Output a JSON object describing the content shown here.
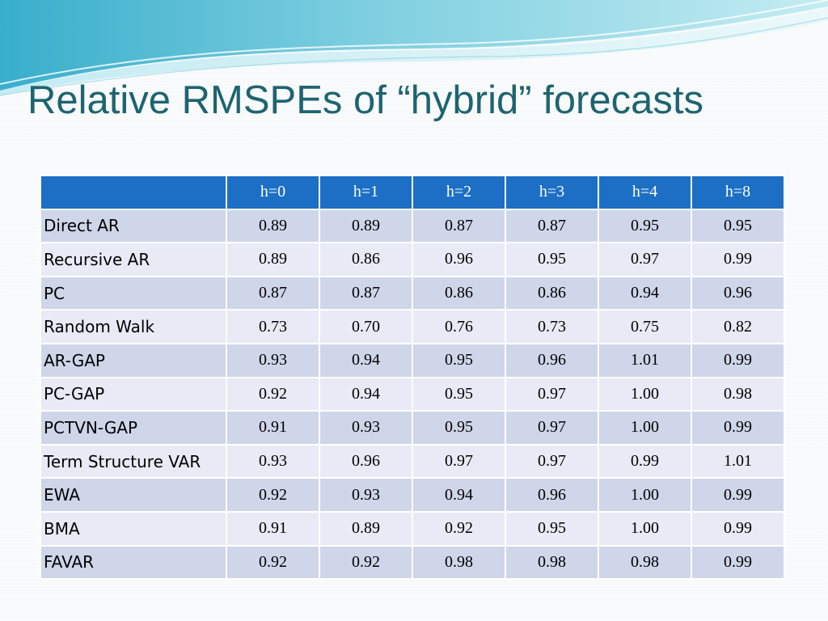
{
  "slide": {
    "title": "Relative RMSPEs of “hybrid” forecasts"
  },
  "colors": {
    "title": "#1d6470",
    "header_fill": "#1c6fc5",
    "row_fill_dark": "#cfd6e9",
    "row_fill_light": "#e8ebf5",
    "wave_light": "#a8dce6",
    "wave_dark": "#3fb3cf"
  },
  "table": {
    "columns": [
      "h=0",
      "h=1",
      "h=2",
      "h=3",
      "h=4",
      "h=8"
    ],
    "rows": [
      {
        "label": "Direct AR",
        "values": [
          "0.89",
          "0.89",
          "0.87",
          "0.87",
          "0.95",
          "0.95"
        ]
      },
      {
        "label": "Recursive AR",
        "values": [
          "0.89",
          "0.86",
          "0.96",
          "0.95",
          "0.97",
          "0.99"
        ]
      },
      {
        "label": "PC",
        "values": [
          "0.87",
          "0.87",
          "0.86",
          "0.86",
          "0.94",
          "0.96"
        ]
      },
      {
        "label": "Random Walk",
        "values": [
          "0.73",
          "0.70",
          "0.76",
          "0.73",
          "0.75",
          "0.82"
        ]
      },
      {
        "label": "AR-GAP",
        "values": [
          "0.93",
          "0.94",
          "0.95",
          "0.96",
          "1.01",
          "0.99"
        ]
      },
      {
        "label": "PC-GAP",
        "values": [
          "0.92",
          "0.94",
          "0.95",
          "0.97",
          "1.00",
          "0.98"
        ]
      },
      {
        "label": "PCTVN-GAP",
        "values": [
          "0.91",
          "0.93",
          "0.95",
          "0.97",
          "1.00",
          "0.99"
        ]
      },
      {
        "label": "Term Structure VAR",
        "values": [
          "0.93",
          "0.96",
          "0.97",
          "0.97",
          "0.99",
          "1.01"
        ]
      },
      {
        "label": "EWA",
        "values": [
          "0.92",
          "0.93",
          "0.94",
          "0.96",
          "1.00",
          "0.99"
        ]
      },
      {
        "label": "BMA",
        "values": [
          "0.91",
          "0.89",
          "0.92",
          "0.95",
          "1.00",
          "0.99"
        ]
      },
      {
        "label": "FAVAR",
        "values": [
          "0.92",
          "0.92",
          "0.98",
          "0.98",
          "0.98",
          "0.99"
        ]
      }
    ]
  }
}
